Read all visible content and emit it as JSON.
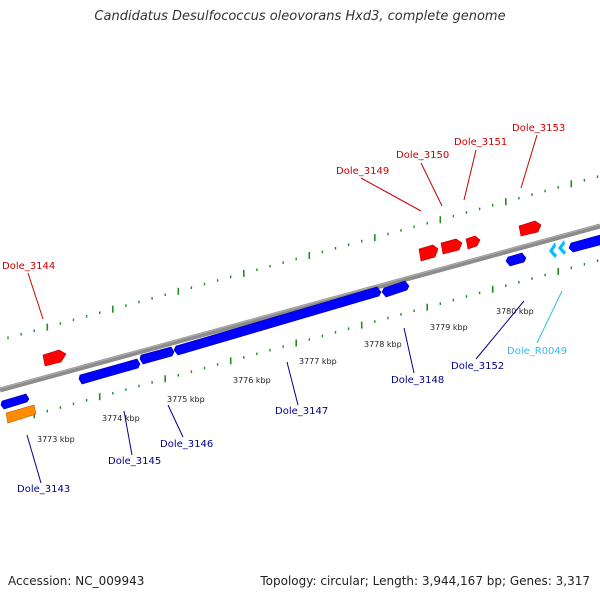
{
  "title": "Candidatus Desulfococcus oleovorans Hxd3, complete genome",
  "footer": {
    "accession": "Accession: NC_009943",
    "summary": "Topology: circular; Length: 3,944,167 bp; Genes: 3,317"
  },
  "colors": {
    "forward_gene": "#ff0000",
    "reverse_gene": "#0000ff",
    "pseudo_gene": "#ff8c00",
    "rna_gene": "#00bfff",
    "forward_label": "#cc0000",
    "reverse_label": "#00008b",
    "rna_label": "#33bbee",
    "tick": "#228b22",
    "backbone": "#8c8c8c"
  },
  "scale_labels": [
    "3773 kbp",
    "3774 kbp",
    "3775 kbp",
    "3776 kbp",
    "3777 kbp",
    "3778 kbp",
    "3779 kbp",
    "3780 kbp"
  ],
  "gene_labels": [
    {
      "id": "Dole_3143",
      "strand": "reverse"
    },
    {
      "id": "Dole_3144",
      "strand": "forward"
    },
    {
      "id": "Dole_3145",
      "strand": "reverse"
    },
    {
      "id": "Dole_3146",
      "strand": "reverse"
    },
    {
      "id": "Dole_3147",
      "strand": "reverse"
    },
    {
      "id": "Dole_3148",
      "strand": "reverse"
    },
    {
      "id": "Dole_3149",
      "strand": "forward"
    },
    {
      "id": "Dole_3150",
      "strand": "forward"
    },
    {
      "id": "Dole_3151",
      "strand": "forward"
    },
    {
      "id": "Dole_3152",
      "strand": "reverse"
    },
    {
      "id": "Dole_3153",
      "strand": "forward"
    },
    {
      "id": "Dole_R0049",
      "strand": "rna"
    }
  ]
}
